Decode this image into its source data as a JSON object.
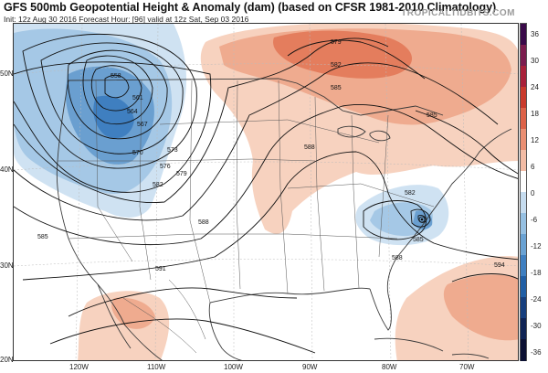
{
  "header": {
    "title": "GFS 500mb Geopotential Height & Anomaly (dam) (based on CFSR 1981-2010 Climatology)",
    "subtitle": "Init: 12z Aug 30 2016   Forecast Hour: [96]   valid at 12z Sat, Sep 03 2016",
    "brand": "TROPICALTIDBITS.COM"
  },
  "axes": {
    "latitude_labels": [
      "50N",
      "40N",
      "30N",
      "20N"
    ],
    "longitude_labels": [
      "120W",
      "110W",
      "100W",
      "90W",
      "80W",
      "70W"
    ]
  },
  "contours": {
    "labels": [
      "558",
      "561",
      "564",
      "567",
      "570",
      "573",
      "576",
      "579",
      "582",
      "585",
      "588",
      "579",
      "582",
      "585",
      "588",
      "591",
      "582",
      "585",
      "588",
      "585",
      "594"
    ]
  },
  "colorbar": {
    "labels": [
      "36",
      "30",
      "24",
      "18",
      "12",
      "6",
      "0",
      "-6",
      "-12",
      "-18",
      "-24",
      "-30",
      "-36"
    ],
    "colors": [
      "#3a0a4a",
      "#7b1d4e",
      "#a8213a",
      "#c93a2c",
      "#dd6248",
      "#ea8f73",
      "#f3bca5",
      "#ffffff",
      "#c6dcef",
      "#96c0e2",
      "#6aa2d3",
      "#3f7fc0",
      "#215fa5",
      "#173f7e",
      "#102455",
      "#0c1133"
    ]
  },
  "colors": {
    "positive_light": "#f7d2bf",
    "positive_mid": "#efab8f",
    "positive_strong": "#e47d5d",
    "negative_light": "#cfe2f2",
    "negative_mid": "#a5c8e6",
    "negative_strong": "#6a9fd0",
    "contour": "#111111",
    "coast": "#3a3a3a"
  }
}
